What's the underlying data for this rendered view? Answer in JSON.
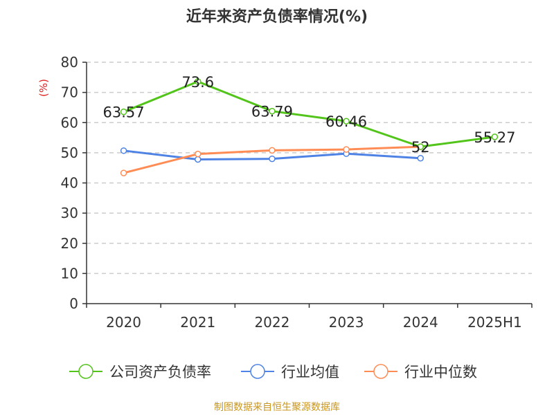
{
  "chart_data": {
    "type": "line",
    "title": "近年来资产负债率情况(%)",
    "ylabel": "(%)",
    "ylim": [
      0,
      80
    ],
    "yticks": [
      0,
      10,
      20,
      30,
      40,
      50,
      60,
      70,
      80
    ],
    "categories": [
      "2020",
      "2021",
      "2022",
      "2023",
      "2024",
      "2025H1"
    ],
    "grid": true,
    "legend_position": "bottom",
    "series": [
      {
        "name": "公司资产负债率",
        "color": "#52c41a",
        "values": [
          63.57,
          73.6,
          63.79,
          60.46,
          52,
          55.27
        ],
        "labels": [
          "63.57",
          "73.6",
          "63.79",
          "60.46",
          "52",
          "55.27"
        ]
      },
      {
        "name": "行业均值",
        "color": "#4e82e4",
        "values": [
          50.7,
          47.8,
          48.0,
          49.7,
          48.2,
          null
        ]
      },
      {
        "name": "行业中位数",
        "color": "#ff8c55",
        "values": [
          43.3,
          49.6,
          50.8,
          51.1,
          52.0,
          null
        ]
      }
    ]
  },
  "source": "制图数据来自恒生聚源数据库",
  "colors": {
    "ylabel": "#e02020",
    "source": "#c8961e"
  }
}
